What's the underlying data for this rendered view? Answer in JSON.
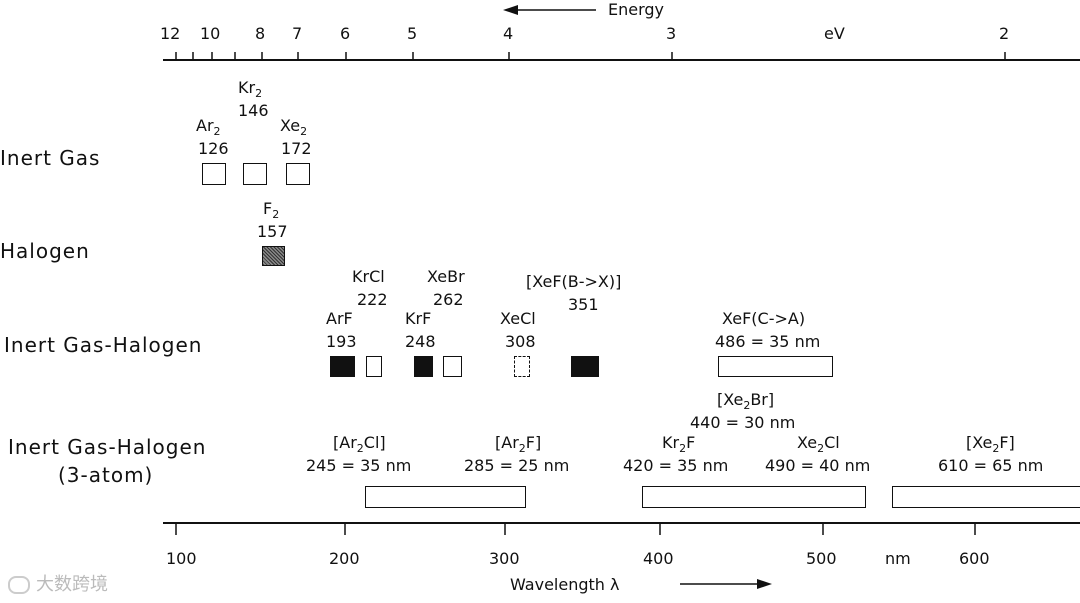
{
  "energy_axis": {
    "label": "Energy",
    "unit": "eV",
    "ticks": [
      "12",
      "10",
      "8",
      "7",
      "6",
      "5",
      "4",
      "3",
      "2"
    ]
  },
  "wavelength_axis": {
    "label": "Wavelength λ",
    "unit": "nm",
    "ticks": [
      "100",
      "200",
      "300",
      "400",
      "500",
      "600"
    ]
  },
  "rows": [
    {
      "label": "Inert Gas"
    },
    {
      "label": "Halogen"
    },
    {
      "label": "Inert Gas-Halogen"
    },
    {
      "label_line1": "Inert Gas-Halogen",
      "label_line2": "(3-atom)"
    }
  ],
  "lasers": {
    "ar2": {
      "name": "Ar",
      "sub": "2",
      "value": "126"
    },
    "kr2": {
      "name": "Kr",
      "sub": "2",
      "value": "146"
    },
    "xe2": {
      "name": "Xe",
      "sub": "2",
      "value": "172"
    },
    "f2": {
      "name": "F",
      "sub": "2",
      "value": "157"
    },
    "arf": {
      "name": "ArF",
      "value": "193"
    },
    "krcl": {
      "name": "KrCl",
      "value": "222"
    },
    "krf": {
      "name": "KrF",
      "value": "248"
    },
    "xebr": {
      "name": "XeBr",
      "value": "262"
    },
    "xecl": {
      "name": "XeCl",
      "value": "308"
    },
    "xefbx": {
      "name": "[XeF(B->X)]",
      "value": "351"
    },
    "xefca": {
      "name": "XeF(C->A)",
      "value": "486 = 35 nm"
    },
    "xe2br": {
      "pre": "[Xe",
      "sub": "2",
      "post": "Br]",
      "value": "440 = 30 nm"
    },
    "ar2cl": {
      "pre": "[Ar",
      "sub": "2",
      "post": "Cl]",
      "value": "245 = 35 nm"
    },
    "ar2f": {
      "pre": "[Ar",
      "sub": "2",
      "post": "F]",
      "value": "285 = 25 nm"
    },
    "kr2f": {
      "pre": "Kr",
      "sub": "2",
      "post": "F",
      "value": "420 = 35 nm"
    },
    "xe2cl": {
      "pre": "Xe",
      "sub": "2",
      "post": "Cl",
      "value": "490 = 40 nm"
    },
    "xe2f": {
      "pre": "[Xe",
      "sub": "2",
      "post": "F]",
      "value": "610 = 65 nm"
    }
  },
  "watermark": "大数跨境"
}
